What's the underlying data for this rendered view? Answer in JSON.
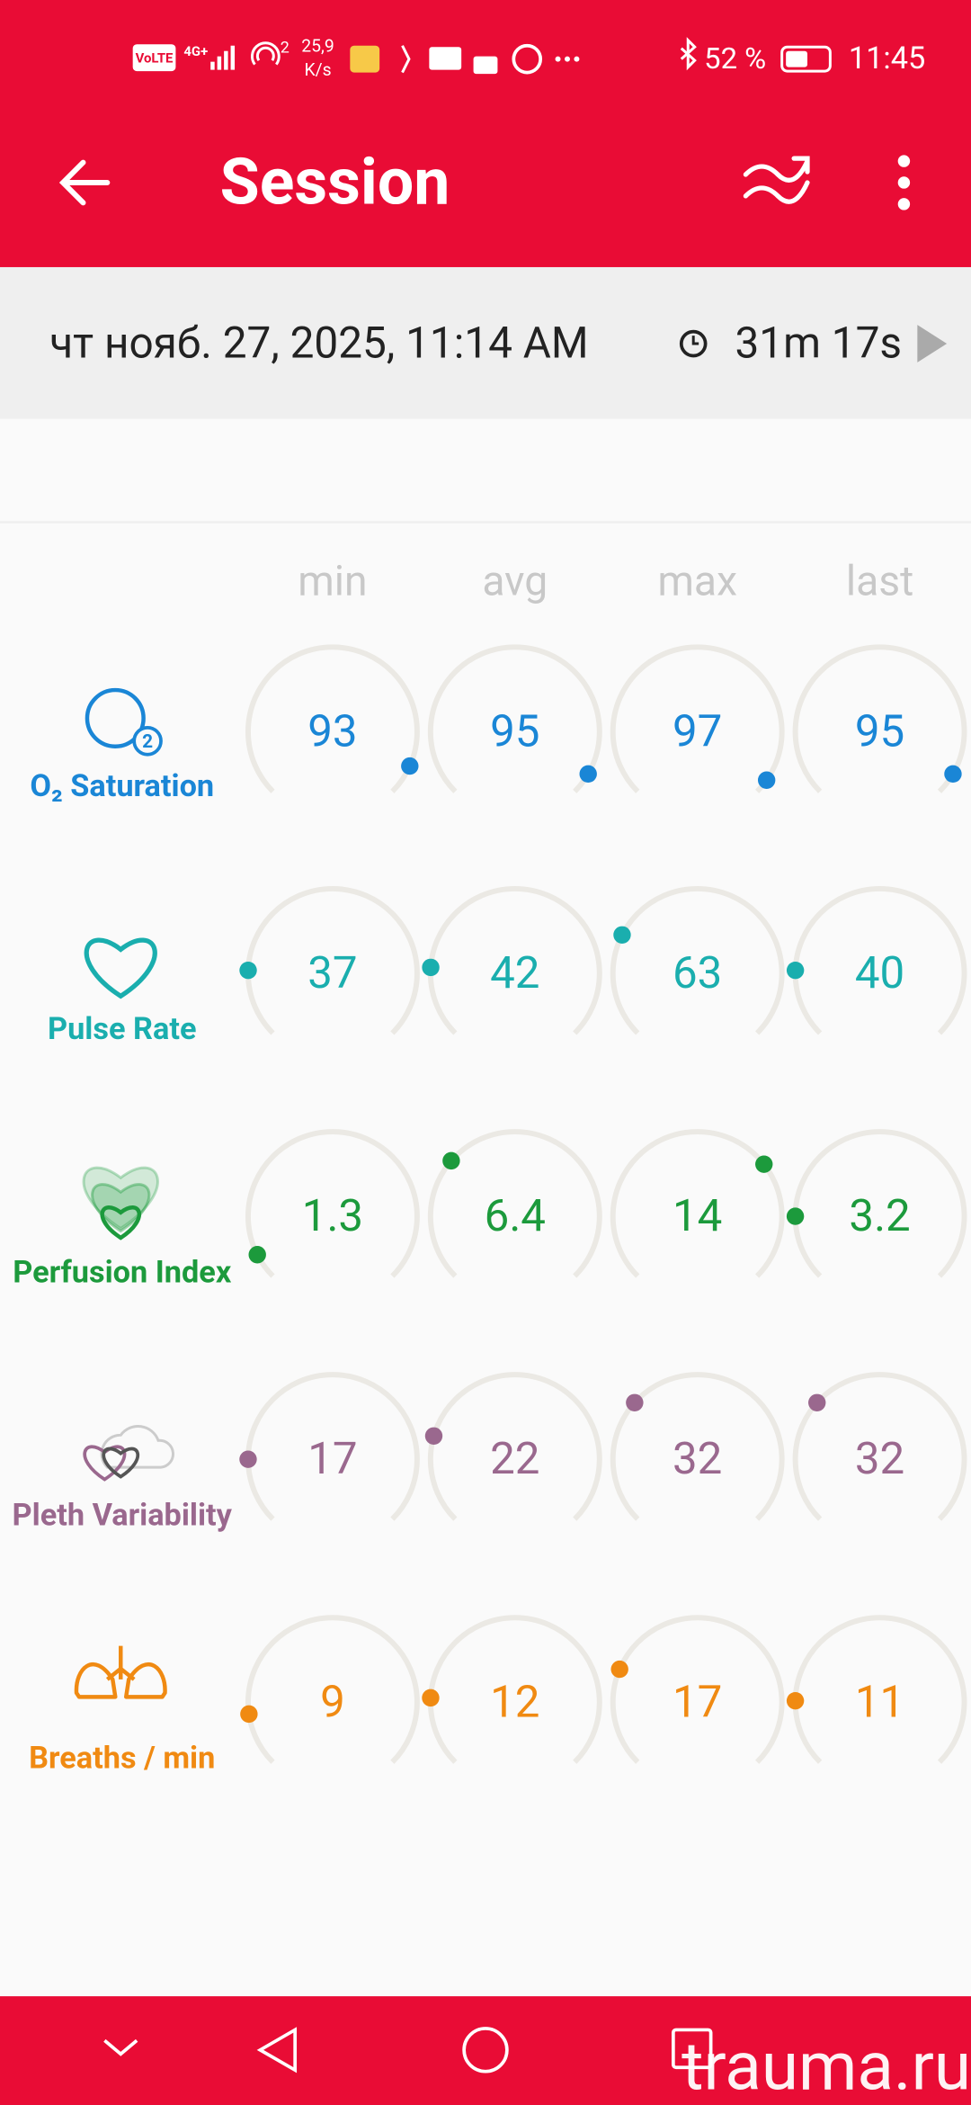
{
  "status_bar": {
    "network": "VoLTE",
    "signal": "4G+",
    "sim": "2",
    "speed": "25,9",
    "speed_unit": "K/s",
    "battery": "52 %",
    "time": "11:45"
  },
  "app_bar": {
    "title": "Session"
  },
  "session": {
    "date": "чт нояб. 27, 2025, 11:14 AM",
    "duration": "31m 17s"
  },
  "table": {
    "columns": [
      "min",
      "avg",
      "max",
      "last"
    ],
    "rows": [
      {
        "label": "O₂ Saturation",
        "badge": "2",
        "color": "#1a86d6",
        "values": [
          93,
          95,
          97,
          95
        ]
      },
      {
        "label": "Pulse Rate",
        "color": "#1aaeae",
        "values": [
          37,
          42,
          63,
          40
        ]
      },
      {
        "label": "Perfusion Index",
        "color": "#1c9a3c",
        "values": [
          1.3,
          6.4,
          14,
          3.2
        ]
      },
      {
        "label": "Pleth Variability",
        "color": "#9a688e",
        "values": [
          17,
          22,
          32,
          32
        ]
      },
      {
        "label": "Breaths / min",
        "color": "#f08a12",
        "values": [
          9,
          12,
          17,
          11
        ]
      }
    ]
  },
  "watermark": "trauma.ru"
}
